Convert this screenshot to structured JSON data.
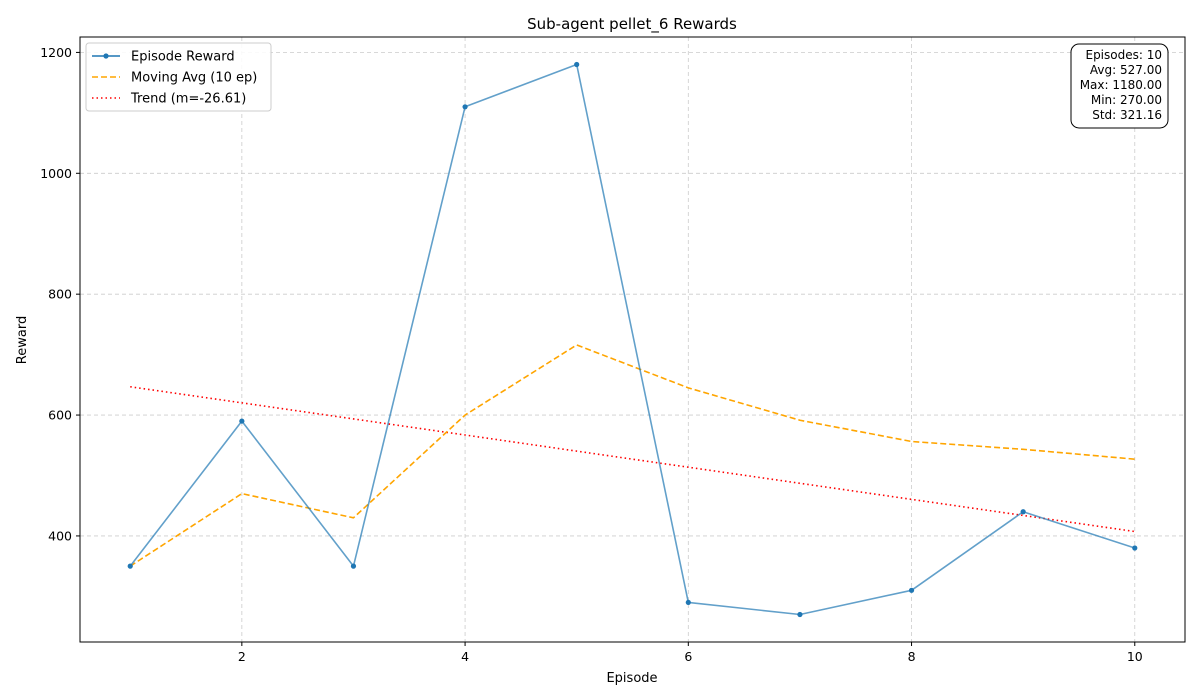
{
  "chart_data": {
    "type": "line",
    "title": "Sub-agent pellet_6 Rewards",
    "xlabel": "Episode",
    "ylabel": "Reward",
    "x": [
      1,
      2,
      3,
      4,
      5,
      6,
      7,
      8,
      9,
      10
    ],
    "xlim": [
      0.55,
      10.45
    ],
    "ylim": [
      224.5,
      1225.5
    ],
    "xticks": [
      2,
      4,
      6,
      8,
      10
    ],
    "yticks": [
      400,
      600,
      800,
      1000,
      1200
    ],
    "grid": true,
    "legend_position": "top-left",
    "series": [
      {
        "name": "Episode Reward",
        "values": [
          350,
          590,
          350,
          1110,
          1180,
          290,
          270,
          310,
          440,
          380
        ],
        "color": "#1f77b4",
        "style": "solid-markers"
      },
      {
        "name": "Moving Avg (10 ep)",
        "values": [
          350,
          470,
          430,
          600,
          716,
          645,
          591.43,
          556.25,
          543.33,
          527
        ],
        "color": "#ffa500",
        "style": "dashed"
      },
      {
        "name": "Trend (m=-26.61)",
        "values": [
          646.8,
          620.2,
          593.6,
          567.0,
          540.3,
          513.7,
          487.1,
          460.5,
          433.9,
          407.3
        ],
        "color": "#ff0000",
        "style": "dotted"
      }
    ],
    "stats_box": {
      "position": "top-right",
      "lines": [
        "Episodes: 10",
        "Avg: 527.00",
        "Max: 1180.00",
        "Min: 270.00",
        "Std: 321.16"
      ]
    }
  }
}
